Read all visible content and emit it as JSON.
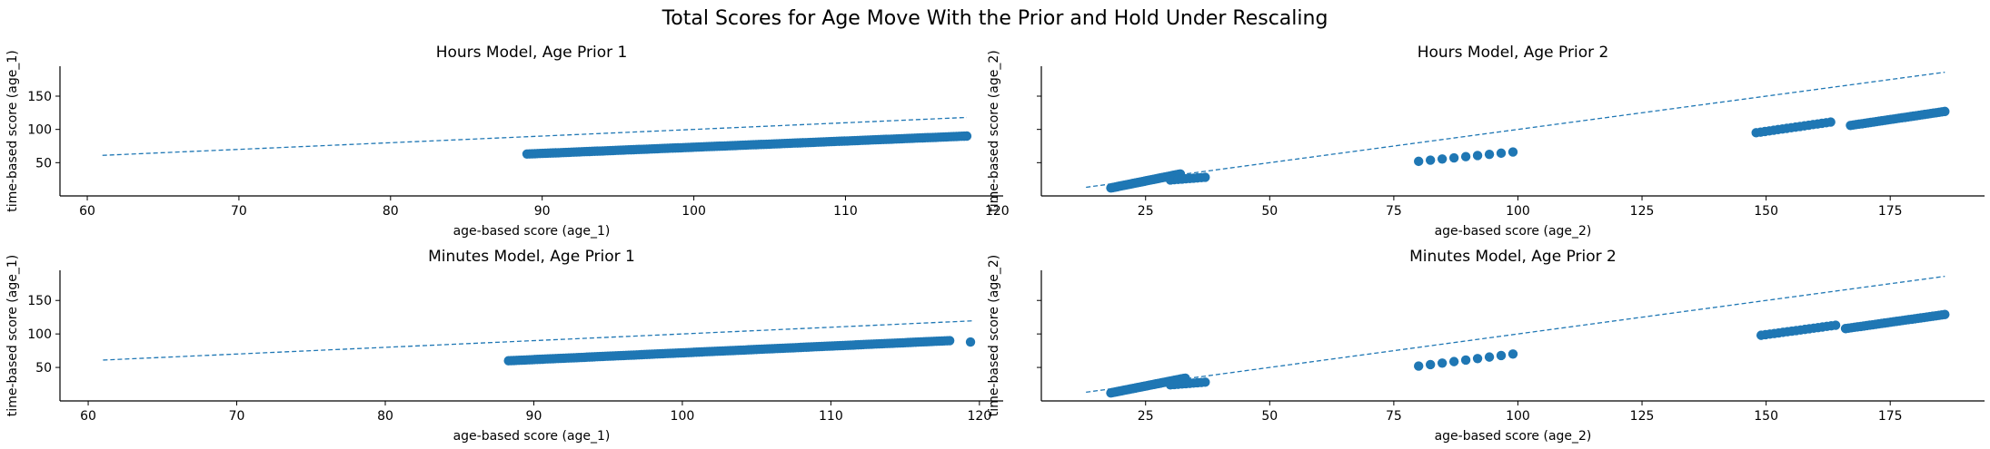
{
  "figure": {
    "title": "Total Scores for Age Move With the Prior and Hold Under Rescaling"
  },
  "colors": {
    "series": "#1f77b4",
    "axis": "#000000"
  },
  "chart_data": [
    {
      "type": "scatter",
      "title": "Hours Model, Age Prior 1",
      "xlabel": "age-based score (age_1)",
      "ylabel": "time-based score (age_1)",
      "xlim": [
        58.2,
        120.4
      ],
      "ylim": [
        0,
        195
      ],
      "xticks": [
        60,
        70,
        80,
        90,
        100,
        110,
        120
      ],
      "yticks": [
        50,
        100,
        150
      ],
      "show_ytick_labels": true,
      "grid": false,
      "reference_line": {
        "style": "dashed",
        "points": [
          [
            61,
            61
          ],
          [
            118,
            118
          ]
        ]
      },
      "point_segments": [
        {
          "x": [
            89,
            118
          ],
          "y": [
            63,
            90
          ],
          "n": 170
        }
      ]
    },
    {
      "type": "scatter",
      "title": "Hours Model, Age Prior 2",
      "xlabel": "age-based score (age_2)",
      "ylabel": "time-based score (age_2)",
      "xlim": [
        4,
        194
      ],
      "ylim": [
        0,
        195
      ],
      "xticks": [
        25,
        50,
        75,
        100,
        125,
        150,
        175
      ],
      "yticks": [
        50,
        100,
        150
      ],
      "show_ytick_labels": false,
      "grid": false,
      "reference_line": {
        "style": "dashed",
        "points": [
          [
            13,
            13
          ],
          [
            186,
            186
          ]
        ]
      },
      "point_segments": [
        {
          "x": [
            18,
            32
          ],
          "y": [
            12,
            33
          ],
          "n": 60
        },
        {
          "x": [
            30,
            37
          ],
          "y": [
            24,
            28
          ],
          "n": 10
        },
        {
          "x": [
            80,
            99
          ],
          "y": [
            52,
            66
          ],
          "n": 9
        },
        {
          "x": [
            148,
            163
          ],
          "y": [
            95,
            111
          ],
          "n": 18
        },
        {
          "x": [
            167,
            186
          ],
          "y": [
            106,
            127
          ],
          "n": 34
        }
      ]
    },
    {
      "type": "scatter",
      "title": "Minutes Model, Age Prior 1",
      "xlabel": "age-based score (age_1)",
      "ylabel": "time-based score (age_1)",
      "xlim": [
        58.1,
        121.6
      ],
      "ylim": [
        0,
        195
      ],
      "xticks": [
        60,
        70,
        80,
        90,
        100,
        110,
        120
      ],
      "yticks": [
        50,
        100,
        150
      ],
      "show_ytick_labels": true,
      "grid": false,
      "reference_line": {
        "style": "dashed",
        "points": [
          [
            61,
            61
          ],
          [
            119.5,
            119.5
          ]
        ]
      },
      "point_segments": [
        {
          "x": [
            88.3,
            118
          ],
          "y": [
            60,
            90
          ],
          "n": 170
        },
        {
          "x": [
            119.4,
            119.4
          ],
          "y": [
            88,
            88
          ],
          "n": 1
        }
      ]
    },
    {
      "type": "scatter",
      "title": "Minutes Model, Age Prior 2",
      "xlabel": "age-based score (age_2)",
      "ylabel": "time-based score (age_2)",
      "xlim": [
        4,
        194
      ],
      "ylim": [
        0,
        195
      ],
      "xticks": [
        25,
        50,
        75,
        100,
        125,
        150,
        175
      ],
      "yticks": [
        50,
        100,
        150
      ],
      "show_ytick_labels": false,
      "grid": false,
      "reference_line": {
        "style": "dashed",
        "points": [
          [
            13,
            13
          ],
          [
            186,
            186
          ]
        ]
      },
      "point_segments": [
        {
          "x": [
            18,
            33
          ],
          "y": [
            12,
            34
          ],
          "n": 60
        },
        {
          "x": [
            30,
            37
          ],
          "y": [
            24,
            28
          ],
          "n": 10
        },
        {
          "x": [
            80,
            99
          ],
          "y": [
            52,
            70
          ],
          "n": 9
        },
        {
          "x": [
            149,
            164
          ],
          "y": [
            98,
            113
          ],
          "n": 18
        },
        {
          "x": [
            166,
            186
          ],
          "y": [
            108,
            129
          ],
          "n": 34
        }
      ]
    }
  ]
}
